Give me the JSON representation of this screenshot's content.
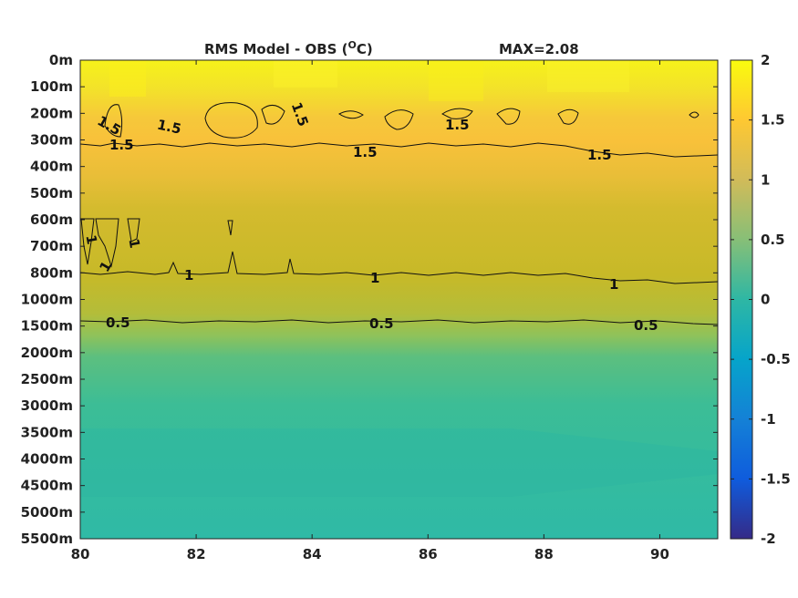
{
  "chart_data": {
    "type": "heatmap",
    "title": "RMS Model - OBS (",
    "title_superscript": "O",
    "title_unit": "C)",
    "max_label": "MAX=2.08",
    "x": {
      "range": [
        80,
        91
      ],
      "ticks": [
        80,
        82,
        84,
        86,
        88,
        90
      ],
      "tick_labels": [
        "80",
        "82",
        "84",
        "86",
        "88",
        "90"
      ]
    },
    "y": {
      "levels": [
        "0m",
        "100m",
        "200m",
        "300m",
        "400m",
        "500m",
        "600m",
        "700m",
        "800m",
        "1000m",
        "1500m",
        "2000m",
        "2500m",
        "3000m",
        "3500m",
        "4000m",
        "4500m",
        "5000m",
        "5500m"
      ]
    },
    "colorbar": {
      "range": [
        -2,
        2
      ],
      "ticks": [
        2,
        1.5,
        1,
        0.5,
        0,
        -0.5,
        -1,
        -1.5,
        -2
      ],
      "tick_labels": [
        "2",
        "1.5",
        "1",
        "0.5",
        "0",
        "-0.5",
        "-1",
        "-1.5",
        "-2"
      ],
      "colormap": "parula"
    },
    "level_values": [
      1.9,
      1.85,
      1.65,
      1.5,
      1.4,
      1.3,
      1.2,
      1.15,
      1.05,
      0.75,
      0.45,
      0.38,
      0.33,
      0.3,
      0.26,
      0.24,
      0.24,
      0.27,
      0.3
    ],
    "contours": [
      {
        "level": 1.5,
        "labels": [
          "1.5",
          "1.5",
          "1.5",
          "1.5",
          "1.5",
          "1.5",
          "1.5"
        ]
      },
      {
        "level": 1,
        "labels": [
          "1",
          "1",
          "1",
          "1",
          "1",
          "1"
        ]
      },
      {
        "level": 0.5,
        "labels": [
          "0.5",
          "0.5",
          "0.5"
        ]
      }
    ]
  }
}
